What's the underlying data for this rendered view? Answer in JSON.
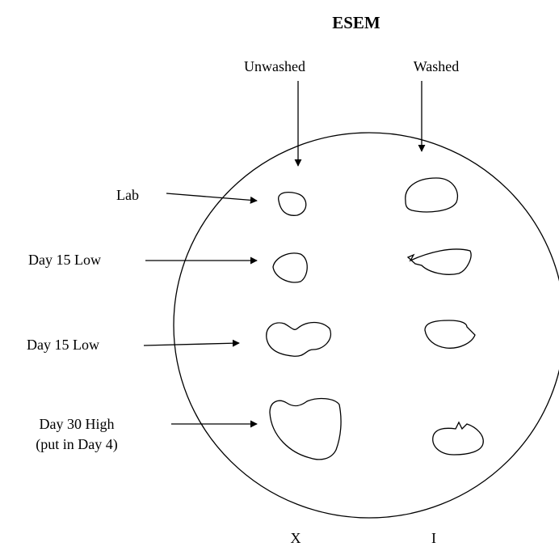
{
  "title": "ESEM",
  "columns": [
    "Unwashed",
    "Washed"
  ],
  "rows": [
    {
      "label": [
        "Lab"
      ]
    },
    {
      "label": [
        "Day 15 Low"
      ]
    },
    {
      "label": [
        "Day 15 Low"
      ]
    },
    {
      "label": [
        "Day 30 High",
        "(put in Day 4)"
      ]
    }
  ],
  "bottom_labels": [
    "X",
    "I"
  ]
}
